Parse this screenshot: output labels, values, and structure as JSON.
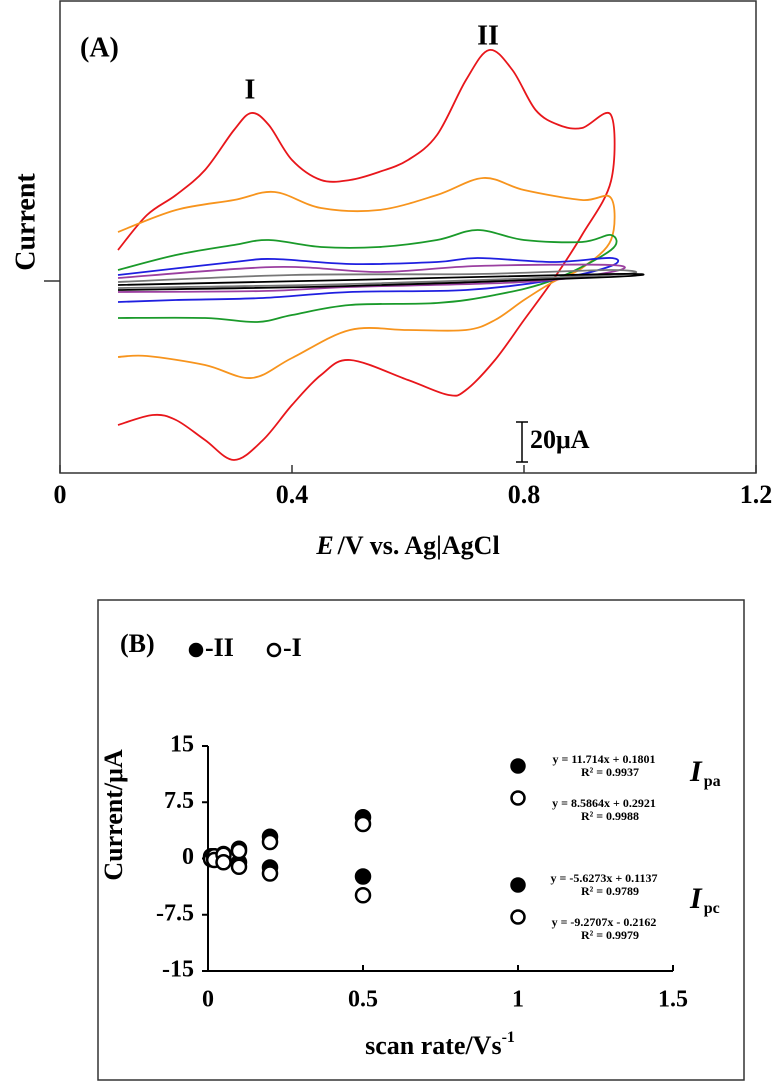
{
  "chart_data": [
    {
      "type": "line",
      "label": "(A)",
      "y_label": "Current",
      "x_label": {
        "symbol": "E",
        "text": "/V vs. Ag|AgCl"
      },
      "xlim": [
        0,
        1.2
      ],
      "xticks": [
        0,
        0.4,
        0.8,
        1.2
      ],
      "ylim": [
        -96,
        140
      ],
      "scale_bar": {
        "value": 20,
        "label": "20μA"
      },
      "annotations": [
        "I",
        "II"
      ],
      "series": [
        {
          "color": "#e8161b",
          "x": [
            0.1,
            0.15,
            0.2,
            0.25,
            0.3,
            0.33,
            0.36,
            0.4,
            0.45,
            0.5,
            0.55,
            0.6,
            0.65,
            0.7,
            0.74,
            0.78,
            0.82,
            0.86,
            0.9,
            0.95,
            0.95,
            0.9,
            0.85,
            0.8,
            0.75,
            0.7,
            0.67,
            0.6,
            0.5,
            0.45,
            0.4,
            0.35,
            0.3,
            0.25,
            0.2,
            0.16,
            0.1
          ],
          "values": [
            15.5,
            33,
            43,
            55.5,
            75.5,
            84,
            78,
            60.5,
            50.5,
            50.5,
            54.5,
            60.5,
            73,
            100.5,
            115.5,
            105.5,
            85.5,
            78,
            76.5,
            83,
            50,
            23,
            0.5,
            -19.5,
            -39.5,
            -54.5,
            -57,
            -49.5,
            -39.5,
            -47,
            -62,
            -79.5,
            -89.5,
            -79.5,
            -69.5,
            -67,
            -72
          ]
        },
        {
          "color": "#f7941d",
          "x": [
            0.1,
            0.2,
            0.3,
            0.37,
            0.45,
            0.55,
            0.65,
            0.73,
            0.8,
            0.9,
            0.95,
            0.95,
            0.9,
            0.85,
            0.8,
            0.75,
            0.7,
            0.6,
            0.5,
            0.4,
            0.33,
            0.25,
            0.15,
            0.1
          ],
          "values": [
            24.5,
            35.5,
            40.5,
            44.5,
            36.5,
            35.5,
            43,
            51.5,
            45.5,
            40.5,
            41.5,
            20.5,
            6.5,
            -0.5,
            -9.5,
            -19.5,
            -24.5,
            -24.5,
            -24.5,
            -38.5,
            -48.5,
            -42,
            -37.5,
            -38
          ]
        },
        {
          "color": "#1a9a2a",
          "x": [
            0.1,
            0.2,
            0.3,
            0.36,
            0.45,
            0.55,
            0.65,
            0.72,
            0.8,
            0.9,
            0.95,
            0.95,
            0.85,
            0.75,
            0.65,
            0.5,
            0.4,
            0.34,
            0.25,
            0.1
          ],
          "values": [
            5.5,
            13,
            18,
            20.5,
            17,
            17,
            20.5,
            25.5,
            20.5,
            19.5,
            23,
            15.5,
            0.5,
            -7,
            -11,
            -12,
            -17,
            -20.5,
            -18.5,
            -18.5
          ]
        },
        {
          "color": "#1f1fe0",
          "x": [
            0.1,
            0.3,
            0.37,
            0.5,
            0.65,
            0.72,
            0.85,
            0.95,
            0.95,
            0.85,
            0.7,
            0.5,
            0.35,
            0.2,
            0.1
          ],
          "values": [
            3,
            9.5,
            11,
            8.5,
            9.5,
            11.5,
            9.5,
            11.5,
            7.5,
            0.5,
            -4.5,
            -5.5,
            -8.5,
            -9.5,
            -10.5
          ]
        },
        {
          "color": "#9b3fa0",
          "x": [
            0.1,
            0.37,
            0.55,
            0.72,
            0.95,
            0.95,
            0.8,
            0.5,
            0.35,
            0.1
          ],
          "values": [
            1.5,
            7,
            4.5,
            7.5,
            8,
            4.5,
            -0.5,
            -3,
            -5,
            -5.5
          ]
        },
        {
          "color": "#777777",
          "x": [
            0.1,
            0.4,
            0.72,
            0.95,
            0.95,
            0.5,
            0.1
          ],
          "values": [
            -0.5,
            3,
            3.5,
            5.5,
            3,
            -1.5,
            -3.5
          ]
        },
        {
          "color": "#000000",
          "x": [
            0.1,
            0.5,
            0.95,
            0.95,
            0.5,
            0.1
          ],
          "values": [
            -2,
            0.5,
            3.5,
            2,
            -2.5,
            -4.5
          ]
        }
      ]
    },
    {
      "type": "scatter",
      "label": "(B)",
      "y_label": "Current/μA",
      "x_label": {
        "text": "scan rate/Vs",
        "superscript": "-1"
      },
      "xlim": [
        0,
        1.5
      ],
      "xticks": [
        0,
        0.5,
        1,
        1.5
      ],
      "ylim": [
        -15,
        15
      ],
      "yticks": [
        15,
        7.5,
        0,
        -7.5,
        -15
      ],
      "series": [
        {
          "name": "-II",
          "marker": "filled",
          "x": [
            0.01,
            0.02,
            0.05,
            0.1,
            0.2,
            0.5
          ],
          "ipa": [
            0.2,
            0.3,
            0.6,
            1.3,
            2.9,
            5.5
          ],
          "ipc": [
            0.1,
            0,
            -0.2,
            -0.5,
            -1.2,
            -2.4
          ]
        },
        {
          "name": "-I",
          "marker": "open",
          "x": [
            0.01,
            0.02,
            0.05,
            0.1,
            0.2,
            0.5
          ],
          "ipa": [
            0.3,
            0.3,
            0.5,
            1.0,
            2.2,
            4.6
          ],
          "ipc": [
            -0.1,
            -0.2,
            -0.5,
            -1.1,
            -2,
            -4.9
          ]
        }
      ],
      "fits": [
        {
          "group": {
            "symbol": "I",
            "subscript": "pa"
          },
          "lines": [
            {
              "marker": "filled",
              "equation": "y = 11.714x + 0.1801",
              "r2": "R² = 0.9937"
            },
            {
              "marker": "open",
              "equation": "y = 8.5864x + 0.2921",
              "r2": "R² = 0.9988"
            }
          ]
        },
        {
          "group": {
            "symbol": "I",
            "subscript": "pc"
          },
          "lines": [
            {
              "marker": "filled",
              "equation": "y = -5.6273x + 0.1137",
              "r2": "R² = 0.9789"
            },
            {
              "marker": "open",
              "equation": "y = -9.2707x - 0.2162",
              "r2": "R² = 0.9979"
            }
          ]
        }
      ]
    }
  ]
}
